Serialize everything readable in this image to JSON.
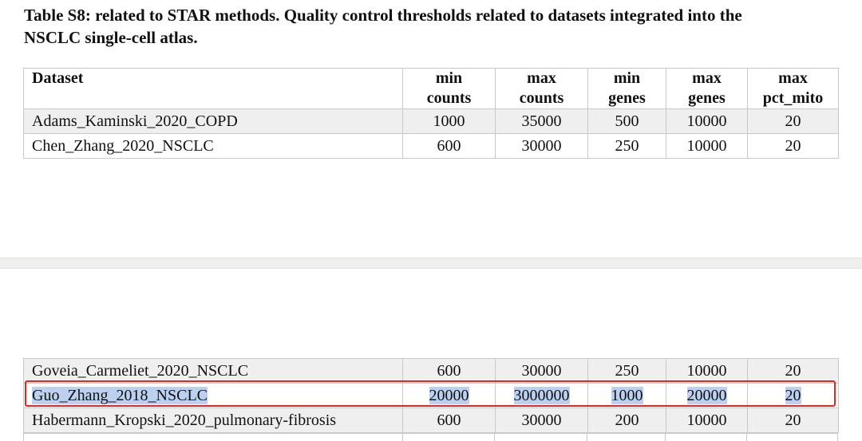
{
  "title": {
    "line1": "Table S8: related to STAR methods. Quality control thresholds related to datasets integrated into the",
    "line2": "NSCLC single-cell atlas."
  },
  "headers": [
    {
      "l1": "Dataset",
      "l2": ""
    },
    {
      "l1": "min",
      "l2": "counts"
    },
    {
      "l1": "max",
      "l2": "counts"
    },
    {
      "l1": "min",
      "l2": "genes"
    },
    {
      "l1": "max",
      "l2": "genes"
    },
    {
      "l1": "max",
      "l2": "pct_mito"
    }
  ],
  "rows_top": [
    {
      "dataset": "Adams_Kaminski_2020_COPD",
      "min_counts": "1000",
      "max_counts": "35000",
      "min_genes": "500",
      "max_genes": "10000",
      "max_pct_mito": "20"
    },
    {
      "dataset": "Chen_Zhang_2020_NSCLC",
      "min_counts": "600",
      "max_counts": "30000",
      "min_genes": "250",
      "max_genes": "10000",
      "max_pct_mito": "20"
    }
  ],
  "rows_bottom": [
    {
      "dataset": "Goveia_Carmeliet_2020_NSCLC",
      "min_counts": "600",
      "max_counts": "30000",
      "min_genes": "250",
      "max_genes": "10000",
      "max_pct_mito": "20"
    },
    {
      "dataset": "Guo_Zhang_2018_NSCLC",
      "min_counts": "20000",
      "max_counts": "3000000",
      "min_genes": "1000",
      "max_genes": "20000",
      "max_pct_mito": "20"
    },
    {
      "dataset": "Habermann_Kropski_2020_pulmonary-fibrosis",
      "min_counts": "600",
      "max_counts": "30000",
      "min_genes": "200",
      "max_genes": "10000",
      "max_pct_mito": "20"
    }
  ],
  "colors": {
    "highlight_box": "#e8261d",
    "selection": "#bcd1ef",
    "row_shade": "#efefef"
  }
}
